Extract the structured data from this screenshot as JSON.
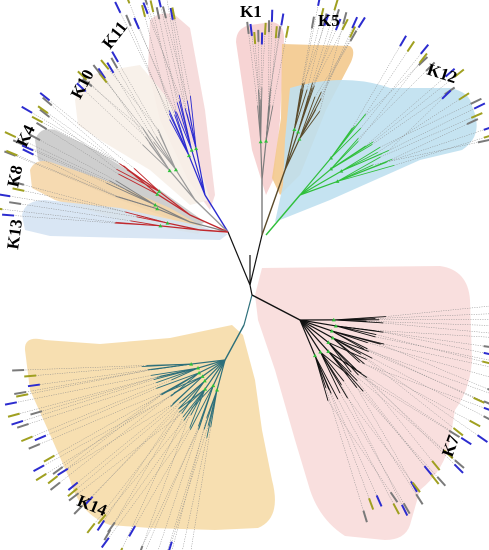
{
  "figure": {
    "type": "unrooted-phylogenetic-tree",
    "clades": [
      {
        "id": "K1",
        "label": "K1",
        "fill": "#f6cfcf",
        "branch": "#7c7c7c"
      },
      {
        "id": "K5",
        "label": "K5",
        "fill": "#f3c98d",
        "branch": "#5a4a2a"
      },
      {
        "id": "K12",
        "label": "K12",
        "fill": "#bfe0f0",
        "branch": "#2fbf3a"
      },
      {
        "id": "K11",
        "label": "K11",
        "fill": "#f5d8d8",
        "branch": "#2a2ad0"
      },
      {
        "id": "K10",
        "label": "K10",
        "fill": "#f7efe8",
        "branch": "#9a9a9a"
      },
      {
        "id": "K4",
        "label": "K4",
        "fill": "#c9c9c9",
        "branch": "#c0282d"
      },
      {
        "id": "K8",
        "label": "K8",
        "fill": "#f5d6a8",
        "branch": "#808080"
      },
      {
        "id": "K13",
        "label": "K13",
        "fill": "#d5e3f3",
        "branch": "#c0282d"
      },
      {
        "id": "K7",
        "label": "K7",
        "fill": "#f8dcda",
        "branch": "#111111"
      },
      {
        "id": "K14",
        "label": "K14",
        "fill": "#f6dca8",
        "branch": "#2d6f7a"
      }
    ],
    "leaf_label_colors": [
      "#2c2ccf",
      "#a0a020",
      "#7a7a7a"
    ],
    "node_marker_color": "#2fbf3a"
  }
}
